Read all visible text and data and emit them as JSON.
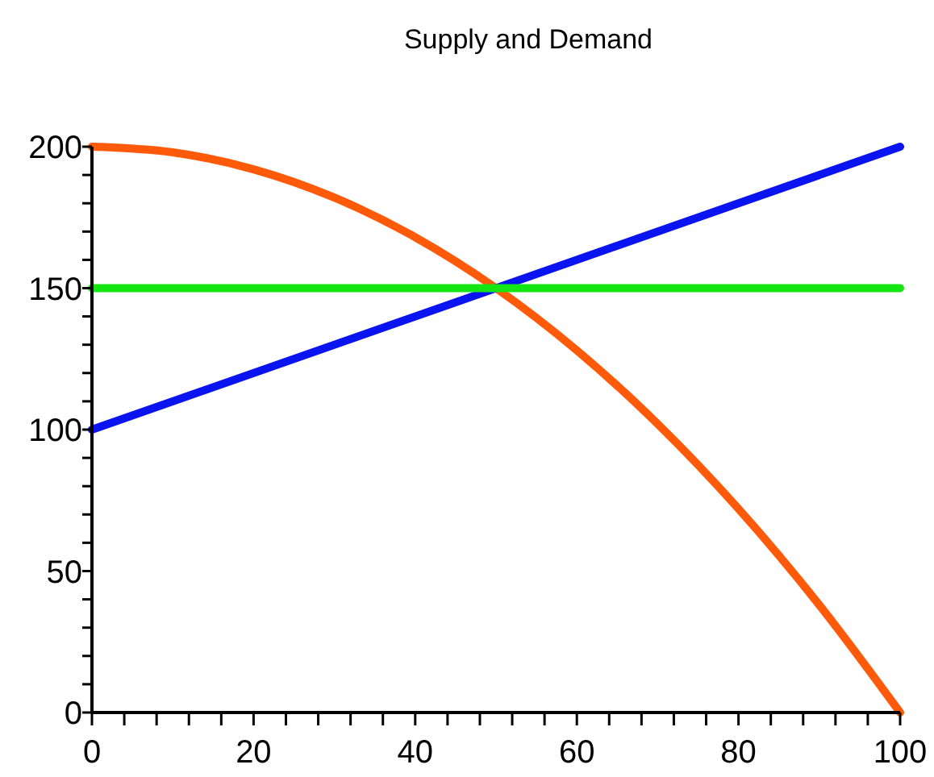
{
  "chart_data": {
    "type": "line",
    "title": "Supply and Demand",
    "xlim": [
      0,
      100
    ],
    "ylim": [
      0,
      200
    ],
    "xticks": [
      0,
      {
        "value": 4,
        "label": null
      },
      {
        "value": 8,
        "label": null
      },
      {
        "value": 12,
        "label": null
      },
      {
        "value": 16,
        "label": null
      },
      20,
      {
        "value": 24,
        "label": null
      },
      {
        "value": 28,
        "label": null
      },
      {
        "value": 32,
        "label": null
      },
      {
        "value": 36,
        "label": null
      },
      40,
      {
        "value": 44,
        "label": null
      },
      {
        "value": 48,
        "label": null
      },
      {
        "value": 52,
        "label": null
      },
      {
        "value": 56,
        "label": null
      },
      60,
      {
        "value": 64,
        "label": null
      },
      {
        "value": 68,
        "label": null
      },
      {
        "value": 72,
        "label": null
      },
      {
        "value": 76,
        "label": null
      },
      80,
      {
        "value": 84,
        "label": null
      },
      {
        "value": 88,
        "label": null
      },
      {
        "value": 92,
        "label": null
      },
      {
        "value": 96,
        "label": null
      },
      100
    ],
    "yticks": [
      0,
      {
        "value": 10,
        "label": null
      },
      {
        "value": 20,
        "label": null
      },
      {
        "value": 30,
        "label": null
      },
      {
        "value": 40,
        "label": null
      },
      50,
      {
        "value": 60,
        "label": null
      },
      {
        "value": 70,
        "label": null
      },
      {
        "value": 80,
        "label": null
      },
      {
        "value": 90,
        "label": null
      },
      100,
      {
        "value": 110,
        "label": null
      },
      {
        "value": 120,
        "label": null
      },
      {
        "value": 130,
        "label": null
      },
      {
        "value": 140,
        "label": null
      },
      150,
      {
        "value": 160,
        "label": null
      },
      {
        "value": 170,
        "label": null
      },
      {
        "value": 180,
        "label": null
      },
      {
        "value": 190,
        "label": null
      },
      200
    ],
    "series": [
      {
        "color": "#ff5a0a",
        "x": [
          0,
          10,
          20,
          30,
          40,
          50,
          60,
          70,
          80,
          90,
          100
        ],
        "values": [
          200,
          198,
          192,
          182,
          168,
          150,
          128,
          102,
          72,
          38,
          0
        ]
      },
      {
        "color": "#0a14f0",
        "x": [
          0,
          100
        ],
        "values": [
          100,
          200
        ]
      },
      {
        "color": "#14e614",
        "x": [
          0,
          100
        ],
        "values": [
          150,
          150
        ]
      }
    ]
  }
}
